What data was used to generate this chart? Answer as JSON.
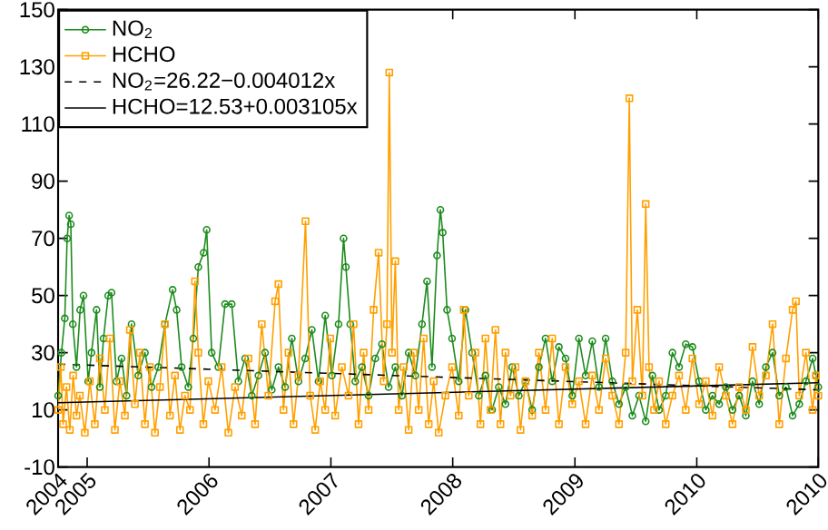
{
  "chart_data": {
    "type": "line",
    "xlim": [
      "2004-10-06",
      "2010-12-31"
    ],
    "xticks": [
      {
        "value": "2004-10-06",
        "label": "2004"
      },
      {
        "value": "2005-01-01",
        "label": "2005"
      },
      {
        "value": "2006-01-01",
        "label": "2006"
      },
      {
        "value": "2007-01-01",
        "label": "2007"
      },
      {
        "value": "2008-01-01",
        "label": "2008"
      },
      {
        "value": "2009-01-01",
        "label": "2009"
      },
      {
        "value": "2010-01-01",
        "label": "2010"
      },
      {
        "value": "2010-12-31",
        "label": "2010"
      }
    ],
    "ylim": [
      -10,
      150
    ],
    "yticks": [
      -10,
      10,
      30,
      50,
      70,
      90,
      110,
      130,
      150
    ],
    "legend": "top left",
    "series": [
      {
        "name": "NO$_{2}$",
        "color": "#1e8c1e",
        "marker": "circle",
        "line_style": "solid",
        "x": [
          "2004-10-06",
          "2004-10-16",
          "2004-10-26",
          "2004-11-02",
          "2004-11-08",
          "2004-11-13",
          "2004-11-19",
          "2004-11-30",
          "2004-12-11",
          "2004-12-21",
          "2005-01-04",
          "2005-01-14",
          "2005-01-29",
          "2005-02-08",
          "2005-02-19",
          "2005-03-05",
          "2005-03-15",
          "2005-03-30",
          "2005-04-14",
          "2005-04-29",
          "2005-05-14",
          "2005-06-03",
          "2005-06-23",
          "2005-07-13",
          "2005-08-02",
          "2005-08-22",
          "2005-09-14",
          "2005-09-26",
          "2005-10-11",
          "2005-10-31",
          "2005-11-15",
          "2005-11-30",
          "2005-12-16",
          "2005-12-25",
          "2006-01-09",
          "2006-01-29",
          "2006-02-18",
          "2006-03-10",
          "2006-03-30",
          "2006-04-19",
          "2006-05-09",
          "2006-05-29",
          "2006-06-18",
          "2006-07-08",
          "2006-07-28",
          "2006-08-17",
          "2006-09-06",
          "2006-09-26",
          "2006-10-16",
          "2006-11-05",
          "2006-11-25",
          "2006-12-15",
          "2007-01-04",
          "2007-01-24",
          "2007-02-08",
          "2007-02-15",
          "2007-02-28",
          "2007-03-15",
          "2007-04-04",
          "2007-04-24",
          "2007-05-14",
          "2007-06-03",
          "2007-06-23",
          "2007-07-13",
          "2007-08-02",
          "2007-08-22",
          "2007-09-11",
          "2007-10-01",
          "2007-10-16",
          "2007-10-31",
          "2007-11-15",
          "2007-11-25",
          "2007-12-02",
          "2007-12-15",
          "2007-12-30",
          "2008-01-19",
          "2008-02-08",
          "2008-02-28",
          "2008-03-19",
          "2008-04-08",
          "2008-04-28",
          "2008-05-18",
          "2008-06-07",
          "2008-06-27",
          "2008-07-17",
          "2008-08-06",
          "2008-08-26",
          "2008-09-15",
          "2008-10-05",
          "2008-10-25",
          "2008-11-14",
          "2008-12-04",
          "2008-12-24",
          "2009-01-13",
          "2009-02-02",
          "2009-02-22",
          "2009-03-14",
          "2009-04-03",
          "2009-04-23",
          "2009-05-13",
          "2009-06-02",
          "2009-06-22",
          "2009-07-12",
          "2009-08-01",
          "2009-08-21",
          "2009-09-10",
          "2009-09-30",
          "2009-10-20",
          "2009-11-09",
          "2009-11-29",
          "2009-12-19",
          "2010-01-08",
          "2010-01-28",
          "2010-02-17",
          "2010-03-09",
          "2010-03-29",
          "2010-04-18",
          "2010-05-08",
          "2010-05-28",
          "2010-06-17",
          "2010-07-07",
          "2010-07-27",
          "2010-08-16",
          "2010-09-05",
          "2010-09-25",
          "2010-10-15",
          "2010-11-04",
          "2010-11-24",
          "2010-12-14",
          "2010-12-24",
          "2010-12-31"
        ],
        "values": [
          15,
          30,
          42,
          70,
          78,
          75,
          40,
          25,
          45,
          50,
          20,
          30,
          45,
          18,
          35,
          50,
          51,
          20,
          28,
          15,
          40,
          22,
          30,
          18,
          25,
          40,
          52,
          45,
          25,
          18,
          35,
          60,
          65,
          73,
          30,
          25,
          47,
          47,
          20,
          28,
          15,
          22,
          30,
          17,
          25,
          18,
          35,
          20,
          28,
          38,
          20,
          43,
          22,
          40,
          70,
          60,
          40,
          20,
          25,
          15,
          28,
          33,
          18,
          25,
          15,
          30,
          22,
          40,
          55,
          25,
          64,
          80,
          72,
          45,
          35,
          20,
          45,
          30,
          15,
          22,
          10,
          18,
          12,
          25,
          15,
          20,
          10,
          25,
          35,
          20,
          32,
          28,
          15,
          35,
          22,
          34,
          18,
          35,
          20,
          12,
          18,
          8,
          15,
          6,
          22,
          10,
          15,
          30,
          25,
          33,
          32,
          20,
          10,
          15,
          12,
          18,
          10,
          15,
          8,
          20,
          12,
          25,
          30,
          15,
          18,
          8,
          12,
          20,
          28,
          22,
          18
        ]
      },
      {
        "name": "HCHO",
        "color": "#ffa000",
        "marker": "square",
        "line_style": "solid",
        "x": [
          "2004-10-06",
          "2004-10-14",
          "2004-10-21",
          "2004-10-31",
          "2004-11-10",
          "2004-11-20",
          "2004-11-30",
          "2004-12-10",
          "2004-12-25",
          "2005-01-09",
          "2005-01-24",
          "2005-02-08",
          "2005-02-23",
          "2005-03-10",
          "2005-03-25",
          "2005-04-09",
          "2005-04-24",
          "2005-05-09",
          "2005-05-24",
          "2005-06-08",
          "2005-06-23",
          "2005-07-08",
          "2005-07-23",
          "2005-08-07",
          "2005-08-22",
          "2005-09-06",
          "2005-09-21",
          "2005-10-06",
          "2005-10-21",
          "2005-11-05",
          "2005-11-20",
          "2005-11-30",
          "2005-12-15",
          "2005-12-30",
          "2006-01-19",
          "2006-02-08",
          "2006-02-28",
          "2006-03-20",
          "2006-04-09",
          "2006-04-29",
          "2006-05-19",
          "2006-06-08",
          "2006-06-28",
          "2006-07-18",
          "2006-07-28",
          "2006-08-12",
          "2006-08-27",
          "2006-09-11",
          "2006-09-26",
          "2006-10-17",
          "2006-10-31",
          "2006-11-15",
          "2006-11-30",
          "2006-12-15",
          "2006-12-30",
          "2007-01-14",
          "2007-02-03",
          "2007-02-23",
          "2007-03-10",
          "2007-03-25",
          "2007-04-09",
          "2007-04-24",
          "2007-05-09",
          "2007-05-24",
          "2007-06-08",
          "2007-06-18",
          "2007-06-25",
          "2007-07-03",
          "2007-07-13",
          "2007-07-23",
          "2007-08-07",
          "2007-08-22",
          "2007-09-06",
          "2007-09-21",
          "2007-10-06",
          "2007-10-21",
          "2007-11-05",
          "2007-11-20",
          "2007-12-10",
          "2007-12-30",
          "2008-01-19",
          "2008-02-03",
          "2008-02-18",
          "2008-03-09",
          "2008-03-24",
          "2008-04-08",
          "2008-04-23",
          "2008-05-08",
          "2008-05-23",
          "2008-06-07",
          "2008-06-22",
          "2008-07-07",
          "2008-07-22",
          "2008-08-06",
          "2008-08-26",
          "2008-09-15",
          "2008-10-05",
          "2008-10-25",
          "2008-11-14",
          "2008-12-04",
          "2008-12-24",
          "2009-01-13",
          "2009-02-02",
          "2009-02-22",
          "2009-03-14",
          "2009-04-03",
          "2009-04-23",
          "2009-05-13",
          "2009-06-02",
          "2009-06-13",
          "2009-06-22",
          "2009-07-07",
          "2009-07-22",
          "2009-08-01",
          "2009-08-11",
          "2009-08-26",
          "2009-09-10",
          "2009-09-30",
          "2009-10-20",
          "2009-11-09",
          "2009-11-29",
          "2009-12-19",
          "2010-01-08",
          "2010-01-28",
          "2010-02-17",
          "2010-03-09",
          "2010-03-29",
          "2010-04-18",
          "2010-05-08",
          "2010-05-28",
          "2010-06-17",
          "2010-07-07",
          "2010-07-27",
          "2010-08-16",
          "2010-09-05",
          "2010-09-25",
          "2010-10-15",
          "2010-10-25",
          "2010-11-04",
          "2010-11-24",
          "2010-12-14",
          "2010-12-24",
          "2010-12-31"
        ],
        "values": [
          10,
          25,
          5,
          18,
          3,
          22,
          8,
          15,
          2,
          20,
          5,
          28,
          10,
          35,
          3,
          20,
          8,
          38,
          12,
          30,
          5,
          25,
          2,
          18,
          40,
          8,
          22,
          3,
          15,
          10,
          55,
          30,
          5,
          20,
          10,
          25,
          2,
          18,
          8,
          28,
          5,
          40,
          15,
          48,
          54,
          10,
          30,
          5,
          22,
          76,
          15,
          3,
          20,
          10,
          35,
          8,
          25,
          15,
          40,
          5,
          30,
          10,
          45,
          65,
          20,
          40,
          128,
          30,
          62,
          10,
          25,
          3,
          30,
          10,
          35,
          5,
          20,
          2,
          15,
          25,
          8,
          45,
          15,
          30,
          5,
          35,
          10,
          38,
          5,
          30,
          15,
          25,
          3,
          20,
          8,
          30,
          10,
          35,
          5,
          25,
          12,
          20,
          5,
          22,
          10,
          28,
          15,
          5,
          30,
          119,
          20,
          45,
          15,
          82,
          25,
          10,
          20,
          5,
          15,
          22,
          10,
          28,
          12,
          20,
          8,
          25,
          15,
          5,
          18,
          10,
          32,
          15,
          22,
          40,
          5,
          28,
          45,
          48,
          15,
          30,
          10,
          22,
          15
        ]
      },
      {
        "name": "NO$_{2}$=26.22−0.004012x",
        "type": "line",
        "color": "#000000",
        "marker": "none",
        "line_style": "dashed",
        "x": [
          "2004-10-06",
          "2010-12-31"
        ],
        "values": [
          26,
          17
        ]
      },
      {
        "name": "HCHO=12.53+0.003105x",
        "type": "line",
        "color": "#000000",
        "marker": "none",
        "line_style": "solid",
        "x": [
          "2004-10-06",
          "2010-12-31"
        ],
        "values": [
          12.5,
          19.5
        ]
      }
    ]
  }
}
